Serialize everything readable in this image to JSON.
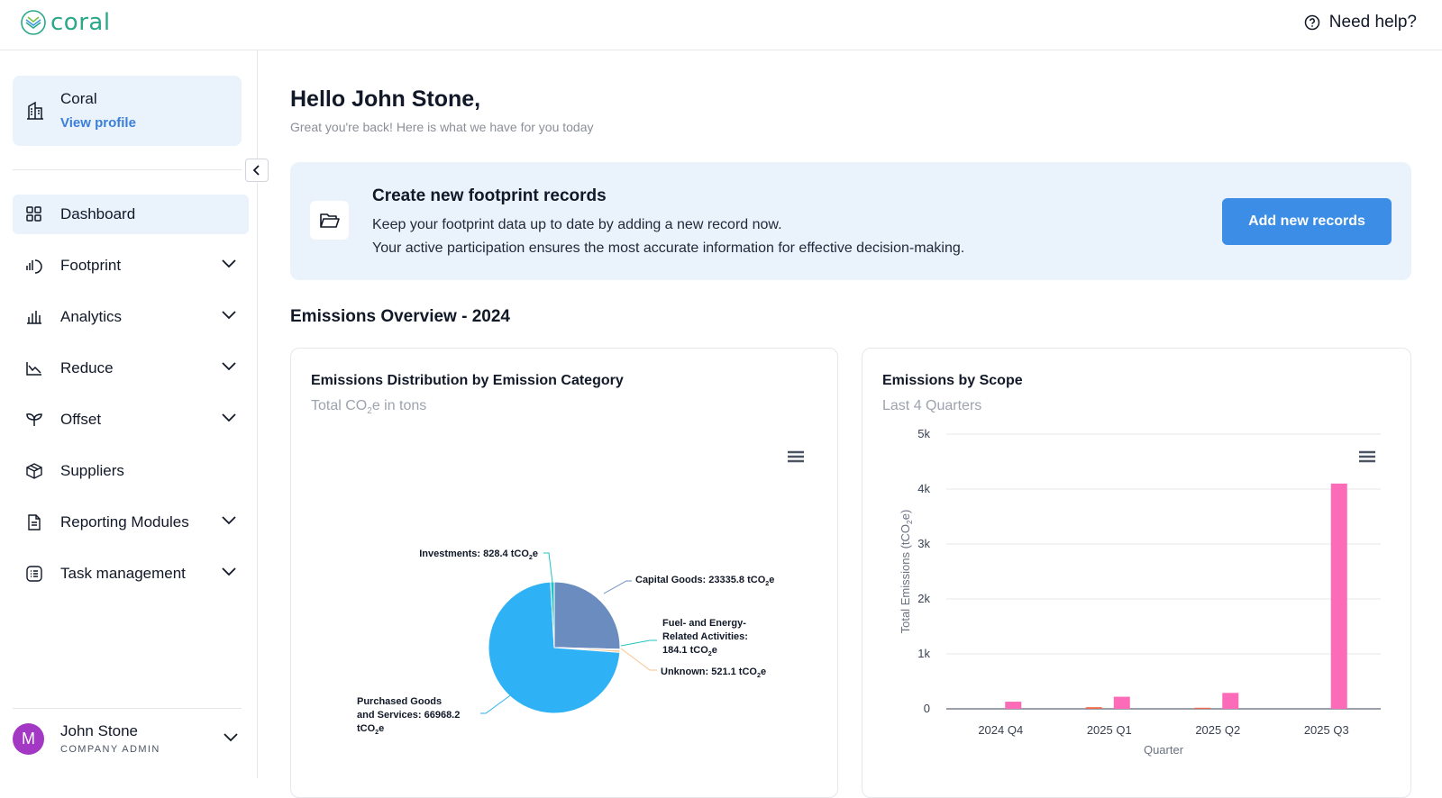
{
  "app": {
    "logo_text": "coral",
    "help_label": "Need help?"
  },
  "sidebar": {
    "org_name": "Coral",
    "view_profile": "View profile",
    "items": [
      {
        "label": "Dashboard",
        "icon": "grid-icon",
        "active": true,
        "expandable": false
      },
      {
        "label": "Footprint",
        "icon": "footprint-icon",
        "active": false,
        "expandable": true
      },
      {
        "label": "Analytics",
        "icon": "bar-chart-icon",
        "active": false,
        "expandable": true
      },
      {
        "label": "Reduce",
        "icon": "trend-down-icon",
        "active": false,
        "expandable": true
      },
      {
        "label": "Offset",
        "icon": "sprout-icon",
        "active": false,
        "expandable": true
      },
      {
        "label": "Suppliers",
        "icon": "box-icon",
        "active": false,
        "expandable": false
      },
      {
        "label": "Reporting Modules",
        "icon": "document-icon",
        "active": false,
        "expandable": true
      },
      {
        "label": "Task management",
        "icon": "checklist-icon",
        "active": false,
        "expandable": true
      }
    ],
    "user": {
      "initial": "M",
      "name": "John Stone",
      "role": "COMPANY ADMIN"
    }
  },
  "main": {
    "greeting": "Hello John Stone,",
    "subtitle": "Great you're back! Here is what we have for you today",
    "banner": {
      "title": "Create new footprint records",
      "line1": "Keep your footprint data up to date by adding a new record now.",
      "line2": "Your active participation ensures the most accurate information for effective decision-making.",
      "button": "Add new records"
    },
    "section_title": "Emissions Overview - 2024",
    "pie_card": {
      "title": "Emissions Distribution by Emission Category",
      "subtitle_pre": "Total CO",
      "subtitle_sub": "2",
      "subtitle_post": "e in tons"
    },
    "bar_card": {
      "title": "Emissions by Scope",
      "subtitle": "Last 4 Quarters"
    }
  },
  "chart_data": [
    {
      "type": "pie",
      "title": "Emissions Distribution by Emission Category",
      "subtitle": "Total CO2e in tons",
      "unit": "tCO2e",
      "slices": [
        {
          "label": "Capital Goods",
          "value": 23335.8,
          "color": "#6b8cbe"
        },
        {
          "label": "Fuel- and Energy-Related Activities",
          "value": 184.1,
          "color": "#22c3c3"
        },
        {
          "label": "Unknown",
          "value": 521.1,
          "color": "#f8c291"
        },
        {
          "label": "Purchased Goods and Services",
          "value": 66968.2,
          "color": "#2eb2f5"
        },
        {
          "label": "Investments",
          "value": 828.4,
          "color": "#22c3c3"
        }
      ],
      "callouts": [
        {
          "text": "Investments: 828.4 tCO",
          "sub": "2",
          "post": "e"
        },
        {
          "text": "Capital Goods: 23335.8 tCO",
          "sub": "2",
          "post": "e"
        },
        {
          "lines": [
            "Fuel- and Energy-",
            "Related Activities:"
          ],
          "text": "184.1 tCO",
          "sub": "2",
          "post": "e"
        },
        {
          "text": "Unknown: 521.1 tCO",
          "sub": "2",
          "post": "e"
        },
        {
          "lines": [
            "Purchased Goods",
            "and Services: 66968.2"
          ],
          "text": "tCO",
          "sub": "2",
          "post": "e"
        }
      ]
    },
    {
      "type": "bar",
      "title": "Emissions by Scope",
      "subtitle": "Last 4 Quarters",
      "categories": [
        "2024 Q4",
        "2025 Q1",
        "2025 Q2",
        "2025 Q3"
      ],
      "series": [
        {
          "values": [
            0,
            30,
            20,
            0
          ],
          "color": "#f06a4a"
        },
        {
          "values": [
            130,
            220,
            290,
            4100
          ],
          "color": "#fb6bb7"
        }
      ],
      "xlabel": "Quarter",
      "ylabel_pre": "Total Emissions (tCO",
      "ylabel_sub": "2",
      "ylabel_post": "e)",
      "ylim": [
        0,
        5000
      ],
      "yticks": [
        0,
        1000,
        2000,
        3000,
        4000,
        5000
      ],
      "ytick_labels": [
        "0",
        "1k",
        "2k",
        "3k",
        "4k",
        "5k"
      ],
      "grid": true
    }
  ]
}
